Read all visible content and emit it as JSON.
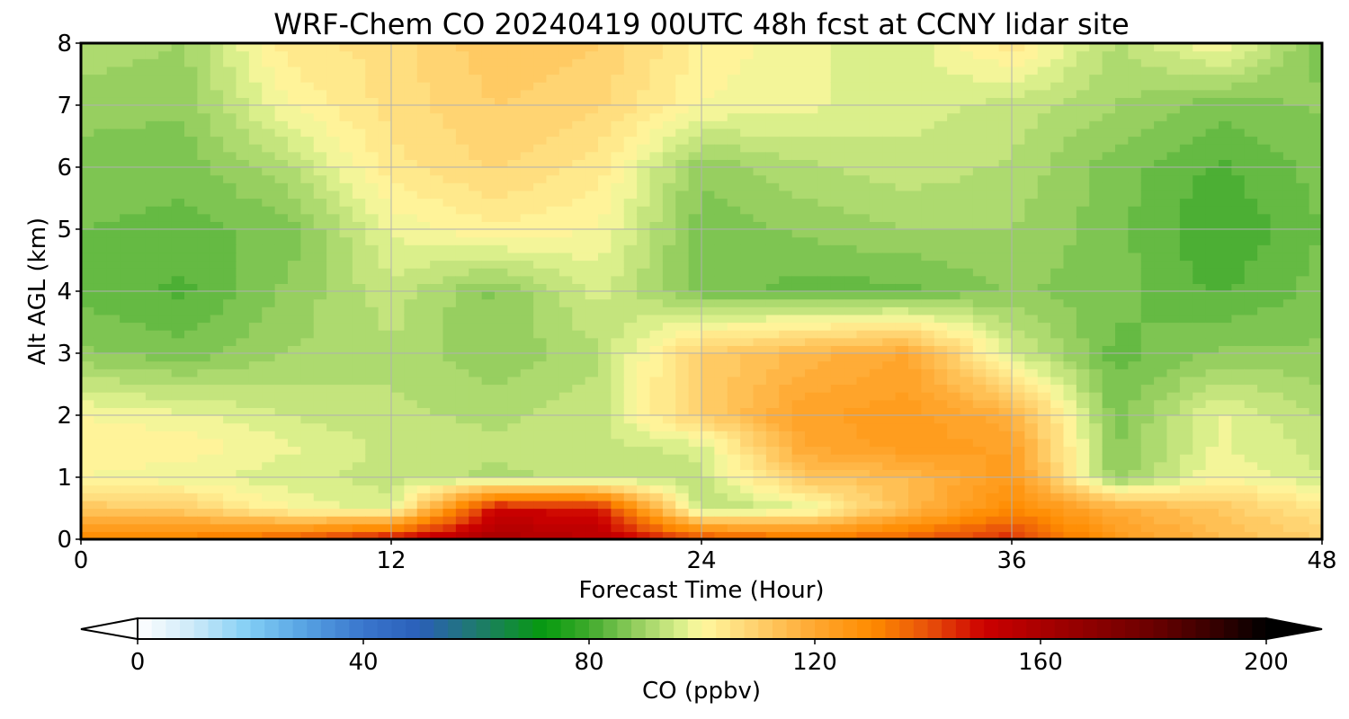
{
  "chart_data": {
    "type": "heatmap",
    "title": "WRF-Chem CO  20240419 00UTC 48h fcst at CCNY lidar site",
    "xlabel": "Forecast Time (Hour)",
    "ylabel": "Alt AGL (km)",
    "xlim": [
      0,
      48
    ],
    "ylim": [
      0,
      8
    ],
    "x_ticks": [
      0,
      12,
      24,
      36,
      48
    ],
    "y_ticks": [
      0,
      1,
      2,
      3,
      4,
      5,
      6,
      7,
      8
    ],
    "grid": true,
    "x": [
      0,
      4,
      8,
      12,
      16,
      20,
      24,
      28,
      32,
      36,
      40,
      44,
      48
    ],
    "y": [
      0,
      0.5,
      1,
      1.5,
      2,
      3,
      4,
      5,
      6,
      7,
      8
    ],
    "z": [
      [
        130,
        132,
        138,
        150,
        160,
        155,
        142,
        135,
        138,
        145,
        125,
        115,
        110
      ],
      [
        112,
        110,
        100,
        96,
        150,
        148,
        92,
        96,
        115,
        130,
        118,
        112,
        104
      ],
      [
        100,
        98,
        96,
        94,
        92,
        93,
        94,
        112,
        115,
        125,
        88,
        100,
        95
      ],
      [
        102,
        102,
        98,
        94,
        93,
        94,
        96,
        120,
        124,
        122,
        87,
        98,
        94
      ],
      [
        100,
        98,
        95,
        93,
        92,
        94,
        110,
        122,
        124,
        118,
        86,
        98,
        92
      ],
      [
        88,
        86,
        90,
        92,
        88,
        92,
        110,
        116,
        120,
        96,
        84,
        88,
        88
      ],
      [
        84,
        82,
        88,
        94,
        87,
        96,
        86,
        84,
        84,
        88,
        86,
        82,
        86
      ],
      [
        85,
        84,
        86,
        98,
        102,
        100,
        86,
        88,
        90,
        90,
        86,
        80,
        85
      ],
      [
        87,
        86,
        92,
        104,
        108,
        104,
        88,
        92,
        94,
        92,
        86,
        82,
        86
      ],
      [
        88,
        88,
        100,
        106,
        110,
        108,
        100,
        98,
        96,
        94,
        90,
        86,
        88
      ],
      [
        92,
        90,
        104,
        106,
        112,
        110,
        102,
        98,
        96,
        104,
        92,
        100,
        86
      ]
    ],
    "colorbar": {
      "label": "CO  (ppbv)",
      "min": 0,
      "max": 200,
      "ticks": [
        0,
        40,
        80,
        120,
        160,
        200
      ],
      "extend": "both",
      "levels": 80,
      "stops": [
        [
          0,
          "#ffffff"
        ],
        [
          10,
          "#cbe9f8"
        ],
        [
          20,
          "#80cdf4"
        ],
        [
          30,
          "#55a0e2"
        ],
        [
          40,
          "#3a76cc"
        ],
        [
          50,
          "#2a5fb8"
        ],
        [
          60,
          "#1e7a6e"
        ],
        [
          72,
          "#069a0e"
        ],
        [
          80,
          "#3faa2c"
        ],
        [
          88,
          "#90cc5c"
        ],
        [
          96,
          "#d8ee8a"
        ],
        [
          100,
          "#fff8a0"
        ],
        [
          108,
          "#ffd776"
        ],
        [
          120,
          "#ffa730"
        ],
        [
          130,
          "#ff8c00"
        ],
        [
          140,
          "#e8520a"
        ],
        [
          150,
          "#cc0000"
        ],
        [
          162,
          "#a30000"
        ],
        [
          180,
          "#6a0000"
        ],
        [
          192,
          "#300000"
        ],
        [
          200,
          "#000000"
        ]
      ]
    }
  }
}
